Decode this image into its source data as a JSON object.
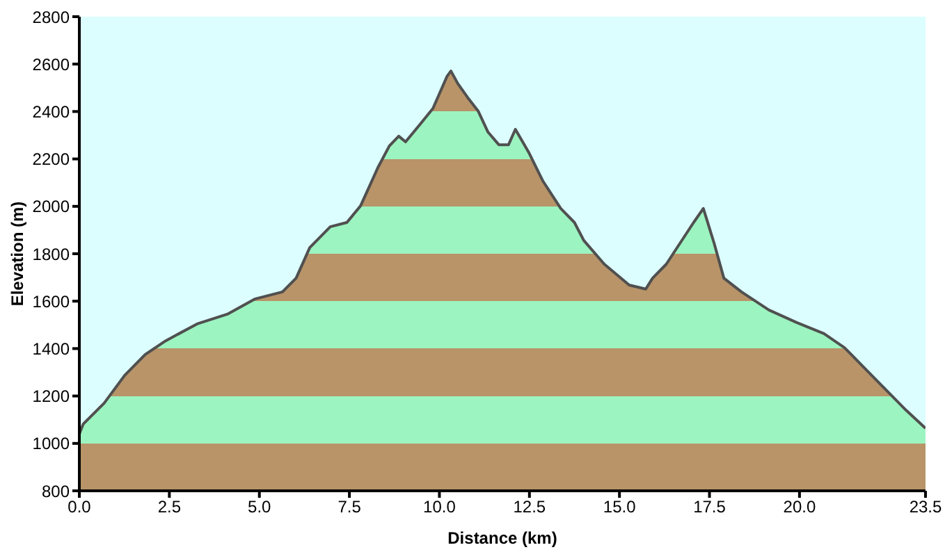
{
  "chart_data": {
    "type": "area",
    "xlabel": "Distance  (km)",
    "ylabel": "Elevation  (m)",
    "x": [
      0,
      0.11,
      0.69,
      1.26,
      1.83,
      2.4,
      3.27,
      4.11,
      4.87,
      5.64,
      6.02,
      6.4,
      6.97,
      7.43,
      7.81,
      8.3,
      8.61,
      8.87,
      9.06,
      9.44,
      9.82,
      10.21,
      10.32,
      10.51,
      10.78,
      11.08,
      11.35,
      11.65,
      11.92,
      12.11,
      12.49,
      12.87,
      13.37,
      13.75,
      14.01,
      14.58,
      15.27,
      15.73,
      15.92,
      16.3,
      16.68,
      17.06,
      17.33,
      17.63,
      17.9,
      18.39,
      19.15,
      19.92,
      20.68,
      21.25,
      21.82,
      22.39,
      22.96,
      23.5
    ],
    "series": [
      {
        "color": "#505050",
        "values": [
          1040,
          1082,
          1170,
          1287,
          1375,
          1433,
          1504,
          1545,
          1609,
          1639,
          1697,
          1826,
          1914,
          1932,
          2002,
          2166,
          2255,
          2296,
          2272,
          2342,
          2413,
          2548,
          2571,
          2518,
          2460,
          2401,
          2313,
          2260,
          2260,
          2325,
          2225,
          2108,
          1991,
          1932,
          1856,
          1756,
          1668,
          1651,
          1697,
          1756,
          1844,
          1932,
          1991,
          1844,
          1697,
          1639,
          1563,
          1510,
          1463,
          1404,
          1316,
          1228,
          1140,
          1064
        ]
      }
    ],
    "colors": [
      "#b89468",
      "#9cf4c0"
    ],
    "xlim": [
      0,
      23.5
    ],
    "xticks": [
      {
        "value": 0,
        "label": "0.0"
      },
      {
        "value": 2.5,
        "label": "2.5"
      },
      {
        "value": 5,
        "label": "5.0"
      },
      {
        "value": 7.5,
        "label": "7.5"
      },
      {
        "value": 10,
        "label": "10.0"
      },
      {
        "value": 12.5,
        "label": "12.5"
      },
      {
        "value": 15,
        "label": "15.0"
      },
      {
        "value": 17.5,
        "label": "17.5"
      },
      {
        "value": 20,
        "label": "20.0"
      },
      {
        "value": 23.5,
        "label": "23.5"
      }
    ],
    "ylim": [
      800,
      2800
    ],
    "yticks": [
      800,
      1000,
      1200,
      1400,
      1600,
      1800,
      2000,
      2200,
      2400,
      2600,
      2800
    ],
    "grid": false,
    "legend": false
  }
}
